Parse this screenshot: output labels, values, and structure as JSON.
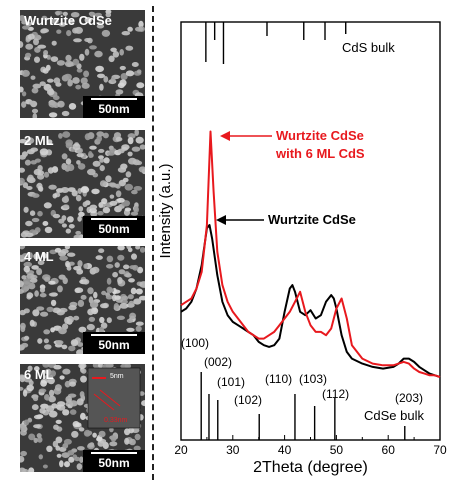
{
  "tem_panels": [
    {
      "label": "Wurtzite CdSe",
      "scale": "50nm",
      "density": 0.55
    },
    {
      "label": "2 ML",
      "scale": "50nm",
      "density": 0.75
    },
    {
      "label": "4 ML",
      "scale": "50nm",
      "density": 0.8
    },
    {
      "label": "6 ML",
      "scale": "50nm",
      "density": 0.85,
      "inset": {
        "scale": "5nm",
        "spacing": "0.33nm"
      }
    }
  ],
  "chart_data": {
    "type": "line",
    "xlabel": "2Theta (degree)",
    "ylabel": "Intensity (a.u.)",
    "xlim": [
      20,
      70
    ],
    "xticks": [
      20,
      30,
      40,
      50,
      60,
      70
    ],
    "ylim": [
      0,
      100
    ],
    "colors": {
      "cdse": "#000000",
      "shell": "#e8191e"
    },
    "series": [
      {
        "name": "Wurtzite CdSe",
        "color": "#000000",
        "x": [
          20,
          21,
          22,
          23,
          24,
          25,
          25.5,
          26,
          27,
          28,
          29,
          30,
          31,
          32,
          33,
          34,
          35,
          36,
          37,
          38,
          39,
          40,
          41,
          41.5,
          42,
          43,
          44,
          45,
          46,
          47,
          48,
          49,
          49.5,
          50,
          51,
          52,
          53,
          55,
          57,
          59,
          61,
          62,
          63,
          64,
          65,
          66,
          67,
          68,
          69,
          70
        ],
        "y": [
          24,
          25,
          27,
          31,
          38,
          49,
          50,
          46,
          35,
          27,
          23,
          21,
          20,
          19,
          18,
          17,
          15,
          14,
          13.5,
          14,
          16,
          24,
          31,
          32,
          30,
          24,
          23,
          24.5,
          22,
          23,
          27,
          29,
          28,
          25,
          17,
          12,
          10,
          8.5,
          7.5,
          7,
          7.5,
          8.5,
          10,
          10,
          9,
          7.5,
          6.5,
          5.5,
          5,
          4.5
        ]
      },
      {
        "name": "Wurtzite CdSe with 6 ML CdS",
        "color": "#e8191e",
        "x": [
          20,
          21,
          22,
          23,
          24,
          25,
          25.7,
          26.3,
          27,
          28,
          29,
          30,
          31,
          32,
          33,
          34,
          35,
          36,
          37,
          38,
          39,
          40,
          41,
          42,
          43,
          44,
          45,
          46,
          47,
          48,
          49,
          50,
          51,
          52,
          53,
          55,
          57,
          59,
          61,
          62,
          63,
          64,
          65,
          66,
          67,
          68,
          69,
          70
        ],
        "y": [
          26,
          27,
          28,
          31,
          36,
          50,
          78,
          60,
          42,
          32,
          27,
          24,
          22,
          20,
          18,
          17,
          16,
          16,
          17,
          18,
          20,
          22,
          24,
          27,
          30,
          24,
          20,
          18,
          18,
          17,
          19,
          25,
          28,
          22,
          14,
          10,
          8.5,
          8,
          8,
          8.5,
          9,
          8.5,
          7,
          6,
          5.5,
          5,
          5,
          4.5
        ]
      }
    ],
    "reference_lines": {
      "cds_bulk": {
        "label": "CdS bulk",
        "positions": [
          24.8,
          26.5,
          28.2,
          36.6,
          43.7,
          47.8,
          51.8
        ]
      },
      "cdse_bulk": {
        "label": "CdSe bulk",
        "positions": [
          23.9,
          25.4,
          27.1,
          35.1,
          42.0,
          45.8,
          49.7,
          63.2
        ]
      }
    },
    "peak_labels": [
      {
        "text": "(100)",
        "x": 23.9
      },
      {
        "text": "(002)",
        "x": 25.4
      },
      {
        "text": "(101)",
        "x": 27.1
      },
      {
        "text": "(102)",
        "x": 35.1
      },
      {
        "text": "(110)",
        "x": 42.0
      },
      {
        "text": "(103)",
        "x": 45.8
      },
      {
        "text": "(112)",
        "x": 49.7
      },
      {
        "text": "(203)",
        "x": 63.2
      }
    ],
    "annotations": [
      {
        "text": "Wurtzite CdSe",
        "color": "#e8191e",
        "line2": "with 6 ML CdS"
      },
      {
        "text": "Wurtzite CdSe",
        "color": "#000000"
      }
    ]
  }
}
